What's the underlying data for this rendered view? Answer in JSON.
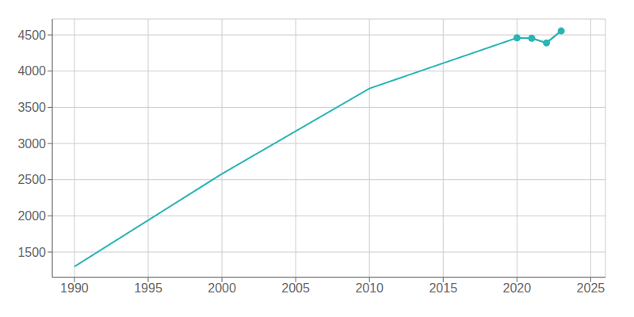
{
  "chart_data": {
    "type": "line",
    "x": [
      1990,
      2000,
      2010,
      2020,
      2021,
      2022,
      2023
    ],
    "series": [
      {
        "color": "#2ab5b5",
        "marker": "none",
        "values": [
          1300,
          2580,
          3760,
          4460,
          4455,
          4390,
          4555
        ]
      },
      {
        "color": "#2ab5b5",
        "marker": "circle",
        "values": [
          null,
          null,
          null,
          4460,
          4455,
          4390,
          4555
        ]
      }
    ],
    "xlim": [
      1988.5,
      2026
    ],
    "ylim": [
      1150,
      4720
    ],
    "xticks": [
      1990,
      1995,
      2000,
      2005,
      2010,
      2015,
      2020,
      2025
    ],
    "yticks": [
      1500,
      2000,
      2500,
      3000,
      3500,
      4000,
      4500
    ],
    "grid": true
  }
}
